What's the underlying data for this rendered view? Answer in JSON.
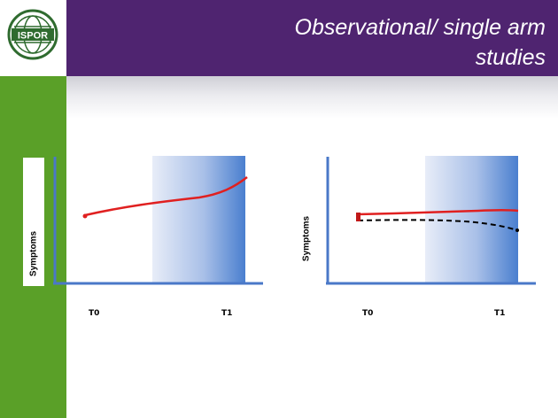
{
  "header": {
    "title_line1": "Observational/ single arm",
    "title_line2": "studies",
    "logo_text": "ISPOR"
  },
  "colors": {
    "header_bg": "#4f2470",
    "sidebar_bg": "#5aa028",
    "axis": "#4a78c8",
    "shade_light": "#e6ecf8",
    "shade_dark": "#4a7fcf",
    "treated_line": "#e02020",
    "untreated_line": "#000000"
  },
  "diagrams": [
    {
      "id": "left",
      "ylabel": "Symptoms",
      "ticks": [
        "T0",
        "T1"
      ],
      "description_series": [
        "symptoms rising"
      ]
    },
    {
      "id": "right",
      "ylabel": "Symptoms",
      "ticks": [
        "T0",
        "T1"
      ],
      "description_series": [
        "symptoms flat",
        "symptoms declining"
      ]
    }
  ]
}
